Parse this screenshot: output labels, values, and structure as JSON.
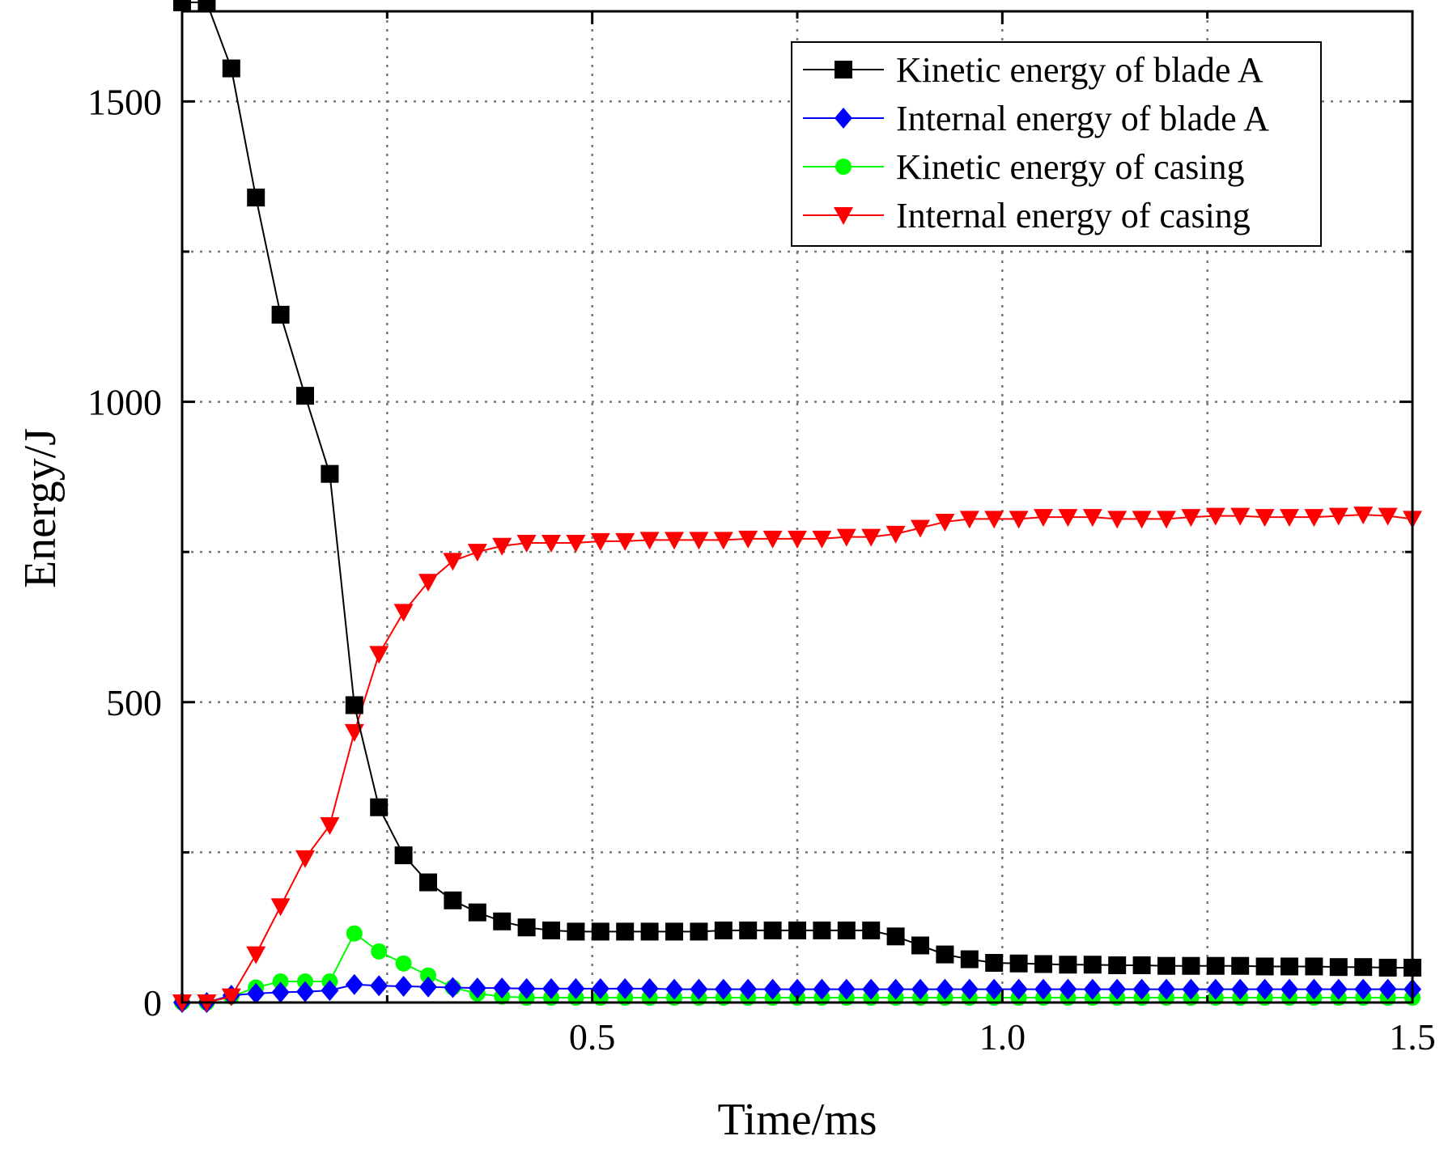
{
  "chart_data": {
    "type": "line",
    "title": "",
    "xlabel": "Time/ms",
    "ylabel": "Energy/J",
    "xlim": [
      0,
      1.5
    ],
    "ylim": [
      0,
      1650
    ],
    "xticks": [
      0.5,
      1.0,
      1.5
    ],
    "xtick_labels": [
      "0.5",
      "1.0",
      "1.5"
    ],
    "yticks": [
      0,
      500,
      1000,
      1500
    ],
    "ytick_labels": [
      "0",
      "500",
      "1000",
      "1500"
    ],
    "grid": true,
    "legend_position": "top-right",
    "x": [
      0,
      0.03,
      0.06,
      0.09,
      0.12,
      0.15,
      0.18,
      0.21,
      0.24,
      0.27,
      0.3,
      0.33,
      0.36,
      0.39,
      0.42,
      0.45,
      0.48,
      0.51,
      0.54,
      0.57,
      0.6,
      0.63,
      0.66,
      0.69,
      0.72,
      0.75,
      0.78,
      0.81,
      0.84,
      0.87,
      0.9,
      0.93,
      0.96,
      0.99,
      1.02,
      1.05,
      1.08,
      1.11,
      1.14,
      1.17,
      1.2,
      1.23,
      1.26,
      1.29,
      1.32,
      1.35,
      1.38,
      1.41,
      1.44,
      1.47,
      1.5
    ],
    "series": [
      {
        "name": "Kinetic energy of blade A",
        "color": "#000000",
        "marker": "square",
        "values": [
          1665,
          1665,
          1555,
          1340,
          1145,
          1010,
          880,
          495,
          325,
          245,
          200,
          170,
          150,
          135,
          125,
          120,
          118,
          118,
          118,
          118,
          118,
          118,
          120,
          120,
          120,
          120,
          120,
          120,
          120,
          110,
          95,
          80,
          72,
          66,
          65,
          64,
          63,
          63,
          62,
          62,
          61,
          61,
          61,
          61,
          60,
          60,
          60,
          59,
          59,
          58,
          58
        ]
      },
      {
        "name": "Internal energy of blade A",
        "color": "#0000ff",
        "marker": "diamond",
        "values": [
          0,
          0,
          12,
          15,
          17,
          18,
          20,
          30,
          28,
          27,
          26,
          25,
          24,
          24,
          23,
          23,
          23,
          23,
          23,
          23,
          22,
          22,
          22,
          22,
          22,
          22,
          22,
          22,
          22,
          22,
          22,
          22,
          22,
          22,
          22,
          22,
          22,
          22,
          22,
          22,
          22,
          22,
          22,
          22,
          22,
          22,
          22,
          22,
          22,
          22,
          22
        ]
      },
      {
        "name": "Kinetic energy of casing",
        "color": "#00ff00",
        "marker": "circle",
        "values": [
          0,
          0,
          10,
          25,
          35,
          35,
          35,
          115,
          85,
          65,
          45,
          25,
          15,
          10,
          8,
          8,
          8,
          8,
          8,
          8,
          8,
          8,
          8,
          8,
          8,
          8,
          8,
          8,
          8,
          8,
          8,
          8,
          8,
          8,
          8,
          8,
          8,
          8,
          8,
          8,
          8,
          8,
          8,
          8,
          8,
          8,
          8,
          8,
          8,
          8,
          8
        ]
      },
      {
        "name": "Internal energy of casing",
        "color": "#ff0000",
        "marker": "triangle-down",
        "values": [
          0,
          0,
          10,
          80,
          160,
          240,
          295,
          450,
          580,
          650,
          700,
          735,
          750,
          760,
          765,
          765,
          765,
          768,
          768,
          770,
          770,
          770,
          770,
          772,
          772,
          772,
          772,
          775,
          775,
          780,
          790,
          800,
          805,
          805,
          805,
          808,
          808,
          808,
          805,
          805,
          805,
          808,
          810,
          810,
          808,
          808,
          808,
          810,
          812,
          810,
          805
        ]
      }
    ]
  }
}
